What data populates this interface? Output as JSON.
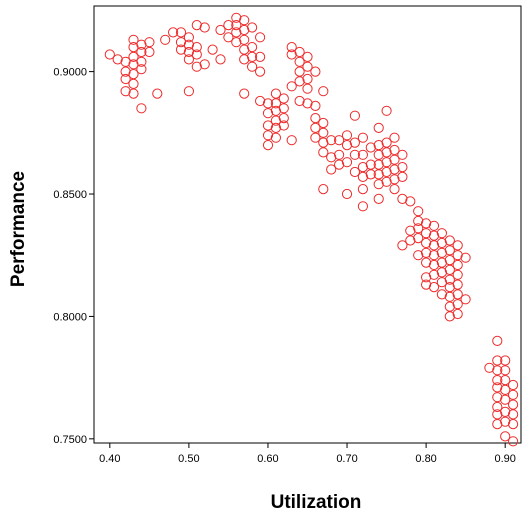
{
  "chart_data": {
    "type": "scatter",
    "title": "",
    "xlabel": "Utilization",
    "ylabel": "Performance",
    "xlim": [
      0.38,
      0.92
    ],
    "ylim": [
      0.7483,
      0.9268
    ],
    "x_ticks": [
      0.4,
      0.5,
      0.6,
      0.7,
      0.8,
      0.9
    ],
    "x_tick_labels": [
      "0.40",
      "0.50",
      "0.60",
      "0.70",
      "0.80",
      "0.90"
    ],
    "y_ticks": [
      0.75,
      0.8,
      0.85,
      0.9
    ],
    "y_tick_labels": [
      "0.7500",
      "0.8000",
      "0.8500",
      "0.9000"
    ],
    "grid": false,
    "marker": "open-circle",
    "marker_color": "#ee2a2a",
    "series": [
      {
        "points": [
          [
            0.4,
            0.907
          ],
          [
            0.41,
            0.905
          ],
          [
            0.42,
            0.904
          ],
          [
            0.42,
            0.9
          ],
          [
            0.42,
            0.897
          ],
          [
            0.42,
            0.892
          ],
          [
            0.43,
            0.913
          ],
          [
            0.43,
            0.91
          ],
          [
            0.43,
            0.906
          ],
          [
            0.43,
            0.903
          ],
          [
            0.43,
            0.899
          ],
          [
            0.43,
            0.895
          ],
          [
            0.43,
            0.891
          ],
          [
            0.44,
            0.911
          ],
          [
            0.44,
            0.908
          ],
          [
            0.44,
            0.904
          ],
          [
            0.44,
            0.901
          ],
          [
            0.44,
            0.885
          ],
          [
            0.45,
            0.912
          ],
          [
            0.45,
            0.908
          ],
          [
            0.46,
            0.891
          ],
          [
            0.47,
            0.913
          ],
          [
            0.48,
            0.916
          ],
          [
            0.49,
            0.916
          ],
          [
            0.49,
            0.912
          ],
          [
            0.49,
            0.909
          ],
          [
            0.5,
            0.914
          ],
          [
            0.5,
            0.911
          ],
          [
            0.5,
            0.908
          ],
          [
            0.5,
            0.905
          ],
          [
            0.5,
            0.892
          ],
          [
            0.51,
            0.919
          ],
          [
            0.51,
            0.91
          ],
          [
            0.51,
            0.907
          ],
          [
            0.51,
            0.902
          ],
          [
            0.52,
            0.918
          ],
          [
            0.52,
            0.903
          ],
          [
            0.53,
            0.909
          ],
          [
            0.54,
            0.917
          ],
          [
            0.54,
            0.905
          ],
          [
            0.55,
            0.919
          ],
          [
            0.55,
            0.914
          ],
          [
            0.56,
            0.922
          ],
          [
            0.56,
            0.919
          ],
          [
            0.56,
            0.916
          ],
          [
            0.56,
            0.912
          ],
          [
            0.57,
            0.921
          ],
          [
            0.57,
            0.917
          ],
          [
            0.57,
            0.913
          ],
          [
            0.57,
            0.909
          ],
          [
            0.57,
            0.905
          ],
          [
            0.57,
            0.891
          ],
          [
            0.58,
            0.918
          ],
          [
            0.58,
            0.91
          ],
          [
            0.58,
            0.906
          ],
          [
            0.58,
            0.902
          ],
          [
            0.59,
            0.914
          ],
          [
            0.59,
            0.906
          ],
          [
            0.59,
            0.9
          ],
          [
            0.59,
            0.888
          ],
          [
            0.6,
            0.887
          ],
          [
            0.6,
            0.883
          ],
          [
            0.6,
            0.878
          ],
          [
            0.6,
            0.874
          ],
          [
            0.6,
            0.87
          ],
          [
            0.61,
            0.891
          ],
          [
            0.61,
            0.887
          ],
          [
            0.61,
            0.884
          ],
          [
            0.61,
            0.88
          ],
          [
            0.61,
            0.877
          ],
          [
            0.61,
            0.873
          ],
          [
            0.62,
            0.889
          ],
          [
            0.62,
            0.885
          ],
          [
            0.62,
            0.881
          ],
          [
            0.62,
            0.878
          ],
          [
            0.63,
            0.91
          ],
          [
            0.63,
            0.907
          ],
          [
            0.63,
            0.894
          ],
          [
            0.63,
            0.872
          ],
          [
            0.64,
            0.908
          ],
          [
            0.64,
            0.904
          ],
          [
            0.64,
            0.9
          ],
          [
            0.64,
            0.896
          ],
          [
            0.64,
            0.888
          ],
          [
            0.65,
            0.906
          ],
          [
            0.65,
            0.902
          ],
          [
            0.65,
            0.897
          ],
          [
            0.65,
            0.893
          ],
          [
            0.65,
            0.887
          ],
          [
            0.66,
            0.9
          ],
          [
            0.66,
            0.886
          ],
          [
            0.66,
            0.881
          ],
          [
            0.66,
            0.877
          ],
          [
            0.66,
            0.873
          ],
          [
            0.67,
            0.892
          ],
          [
            0.67,
            0.879
          ],
          [
            0.67,
            0.875
          ],
          [
            0.67,
            0.871
          ],
          [
            0.67,
            0.867
          ],
          [
            0.67,
            0.852
          ],
          [
            0.68,
            0.872
          ],
          [
            0.68,
            0.865
          ],
          [
            0.68,
            0.86
          ],
          [
            0.69,
            0.872
          ],
          [
            0.69,
            0.866
          ],
          [
            0.69,
            0.862
          ],
          [
            0.7,
            0.874
          ],
          [
            0.7,
            0.87
          ],
          [
            0.7,
            0.863
          ],
          [
            0.7,
            0.85
          ],
          [
            0.71,
            0.882
          ],
          [
            0.71,
            0.871
          ],
          [
            0.71,
            0.866
          ],
          [
            0.71,
            0.859
          ],
          [
            0.72,
            0.873
          ],
          [
            0.72,
            0.866
          ],
          [
            0.72,
            0.861
          ],
          [
            0.72,
            0.857
          ],
          [
            0.72,
            0.852
          ],
          [
            0.72,
            0.845
          ],
          [
            0.73,
            0.869
          ],
          [
            0.73,
            0.862
          ],
          [
            0.73,
            0.858
          ],
          [
            0.74,
            0.877
          ],
          [
            0.74,
            0.87
          ],
          [
            0.74,
            0.866
          ],
          [
            0.74,
            0.862
          ],
          [
            0.74,
            0.858
          ],
          [
            0.74,
            0.854
          ],
          [
            0.74,
            0.848
          ],
          [
            0.75,
            0.884
          ],
          [
            0.75,
            0.871
          ],
          [
            0.75,
            0.867
          ],
          [
            0.75,
            0.863
          ],
          [
            0.75,
            0.859
          ],
          [
            0.75,
            0.855
          ],
          [
            0.76,
            0.873
          ],
          [
            0.76,
            0.868
          ],
          [
            0.76,
            0.864
          ],
          [
            0.76,
            0.86
          ],
          [
            0.76,
            0.856
          ],
          [
            0.76,
            0.852
          ],
          [
            0.77,
            0.866
          ],
          [
            0.77,
            0.861
          ],
          [
            0.77,
            0.857
          ],
          [
            0.77,
            0.848
          ],
          [
            0.77,
            0.829
          ],
          [
            0.78,
            0.847
          ],
          [
            0.78,
            0.835
          ],
          [
            0.78,
            0.831
          ],
          [
            0.79,
            0.843
          ],
          [
            0.79,
            0.839
          ],
          [
            0.79,
            0.836
          ],
          [
            0.79,
            0.832
          ],
          [
            0.79,
            0.825
          ],
          [
            0.8,
            0.838
          ],
          [
            0.8,
            0.834
          ],
          [
            0.8,
            0.83
          ],
          [
            0.8,
            0.826
          ],
          [
            0.8,
            0.822
          ],
          [
            0.8,
            0.816
          ],
          [
            0.8,
            0.813
          ],
          [
            0.81,
            0.837
          ],
          [
            0.81,
            0.833
          ],
          [
            0.81,
            0.829
          ],
          [
            0.81,
            0.825
          ],
          [
            0.81,
            0.821
          ],
          [
            0.81,
            0.817
          ],
          [
            0.81,
            0.812
          ],
          [
            0.82,
            0.834
          ],
          [
            0.82,
            0.83
          ],
          [
            0.82,
            0.826
          ],
          [
            0.82,
            0.822
          ],
          [
            0.82,
            0.818
          ],
          [
            0.82,
            0.814
          ],
          [
            0.82,
            0.809
          ],
          [
            0.83,
            0.831
          ],
          [
            0.83,
            0.827
          ],
          [
            0.83,
            0.823
          ],
          [
            0.83,
            0.819
          ],
          [
            0.83,
            0.815
          ],
          [
            0.83,
            0.812
          ],
          [
            0.83,
            0.808
          ],
          [
            0.83,
            0.804
          ],
          [
            0.83,
            0.8
          ],
          [
            0.84,
            0.829
          ],
          [
            0.84,
            0.825
          ],
          [
            0.84,
            0.821
          ],
          [
            0.84,
            0.817
          ],
          [
            0.84,
            0.813
          ],
          [
            0.84,
            0.809
          ],
          [
            0.84,
            0.805
          ],
          [
            0.84,
            0.801
          ],
          [
            0.85,
            0.824
          ],
          [
            0.85,
            0.807
          ],
          [
            0.88,
            0.779
          ],
          [
            0.89,
            0.79
          ],
          [
            0.89,
            0.782
          ],
          [
            0.89,
            0.778
          ],
          [
            0.89,
            0.774
          ],
          [
            0.89,
            0.771
          ],
          [
            0.89,
            0.767
          ],
          [
            0.89,
            0.763
          ],
          [
            0.89,
            0.76
          ],
          [
            0.89,
            0.756
          ],
          [
            0.9,
            0.782
          ],
          [
            0.9,
            0.778
          ],
          [
            0.9,
            0.774
          ],
          [
            0.9,
            0.77
          ],
          [
            0.9,
            0.766
          ],
          [
            0.9,
            0.761
          ],
          [
            0.9,
            0.757
          ],
          [
            0.9,
            0.751
          ],
          [
            0.91,
            0.772
          ],
          [
            0.91,
            0.768
          ],
          [
            0.91,
            0.764
          ],
          [
            0.91,
            0.76
          ],
          [
            0.91,
            0.756
          ],
          [
            0.91,
            0.749
          ]
        ]
      }
    ]
  }
}
